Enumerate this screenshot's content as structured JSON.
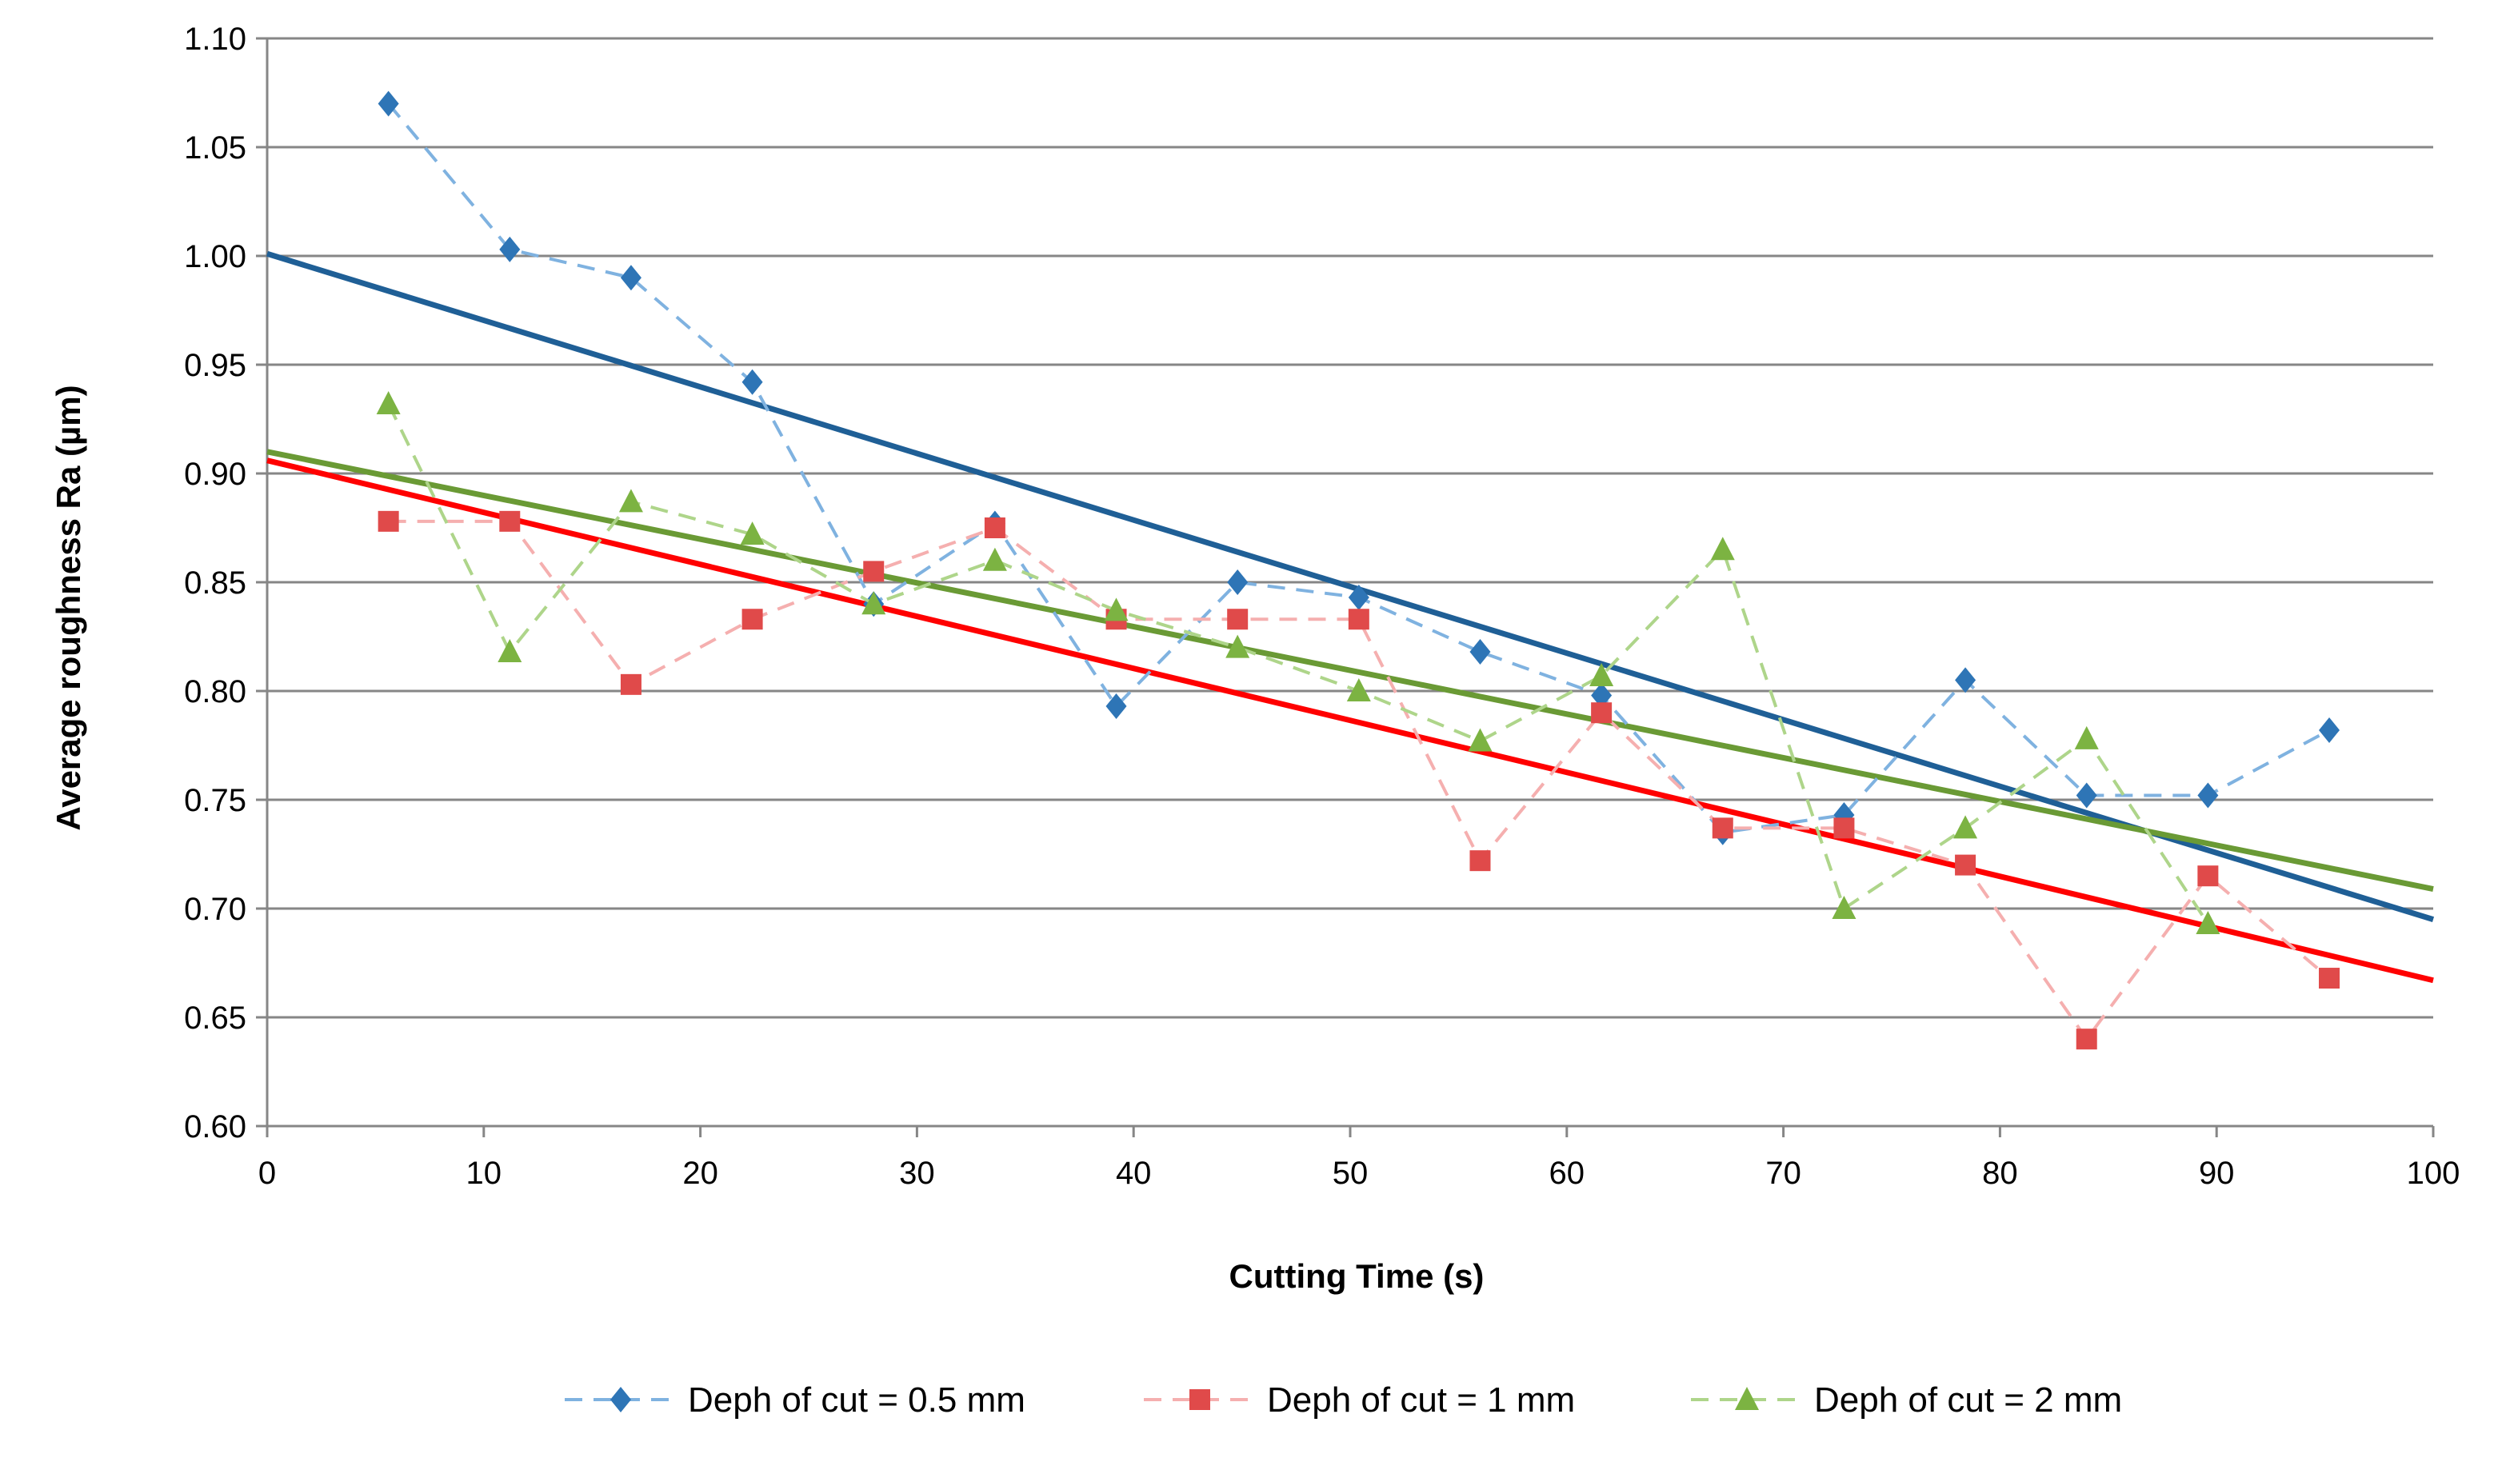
{
  "chart_data": {
    "type": "scatter",
    "title": "",
    "xlabel": "Cutting Time (s)",
    "ylabel": "Average roughness Ra (µm)",
    "xlim": [
      0,
      100
    ],
    "ylim": [
      0.6,
      1.1
    ],
    "x_ticks": [
      0,
      10,
      20,
      30,
      40,
      50,
      60,
      70,
      80,
      90,
      100
    ],
    "x_tick_labels": [
      "0",
      "10",
      "20",
      "30",
      "40",
      "50",
      "60",
      "70",
      "80",
      "90",
      "100"
    ],
    "y_ticks": [
      0.6,
      0.65,
      0.7,
      0.75,
      0.8,
      0.85,
      0.9,
      0.95,
      1.0,
      1.05,
      1.1
    ],
    "y_tick_labels": [
      "0.60",
      "0.65",
      "0.70",
      "0.75",
      "0.80",
      "0.85",
      "0.90",
      "0.95",
      "1.00",
      "1.05",
      "1.10"
    ],
    "grid": "horizontal",
    "legend_position": "bottom",
    "series": [
      {
        "name": "Deph of cut = 0.5 mm",
        "marker": "diamond",
        "color": "#2E75B6",
        "line_color": "#7FB2E0",
        "line_style": "dashed",
        "x": [
          5.6,
          11.2,
          16.8,
          22.4,
          28.0,
          33.6,
          39.2,
          44.8,
          50.4,
          56.0,
          61.6,
          67.2,
          72.8,
          78.4,
          84.0,
          89.6,
          95.2
        ],
        "y": [
          1.07,
          1.003,
          0.99,
          0.942,
          0.84,
          0.877,
          0.793,
          0.85,
          0.843,
          0.818,
          0.798,
          0.735,
          0.743,
          0.805,
          0.752,
          0.752,
          0.782
        ]
      },
      {
        "name": "Deph of cut = 1 mm",
        "marker": "square",
        "color": "#E04A4A",
        "line_color": "#F5AFAF",
        "line_style": "dashed",
        "x": [
          5.6,
          11.2,
          16.8,
          22.4,
          28.0,
          33.6,
          39.2,
          44.8,
          50.4,
          56.0,
          61.6,
          67.2,
          72.8,
          78.4,
          84.0,
          89.6,
          95.2
        ],
        "y": [
          0.878,
          0.878,
          0.803,
          0.833,
          0.855,
          0.875,
          0.833,
          0.833,
          0.833,
          0.722,
          0.79,
          0.737,
          0.737,
          0.72,
          0.64,
          0.715,
          0.668
        ]
      },
      {
        "name": "Deph of cut = 2 mm",
        "marker": "triangle",
        "color": "#7CB342",
        "line_color": "#AED58A",
        "line_style": "dashed",
        "x": [
          5.6,
          11.2,
          16.8,
          22.4,
          28.0,
          33.6,
          39.2,
          44.8,
          50.4,
          56.0,
          61.6,
          67.2,
          72.8,
          78.4,
          84.0,
          89.6
        ],
        "y": [
          0.932,
          0.818,
          0.887,
          0.872,
          0.84,
          0.86,
          0.837,
          0.82,
          0.8,
          0.777,
          0.807,
          0.865,
          0.7,
          0.737,
          0.778,
          0.693
        ]
      }
    ],
    "trendlines": [
      {
        "series": "Deph of cut = 0.5 mm",
        "color": "#1F5F96",
        "x": [
          0,
          100
        ],
        "y": [
          1.001,
          0.695
        ]
      },
      {
        "series": "Deph of cut = 1 mm",
        "color": "#FF0000",
        "x": [
          0,
          100
        ],
        "y": [
          0.906,
          0.667
        ]
      },
      {
        "series": "Deph of cut = 2 mm",
        "color": "#6A9A35",
        "x": [
          0,
          100
        ],
        "y": [
          0.91,
          0.709
        ]
      }
    ]
  }
}
